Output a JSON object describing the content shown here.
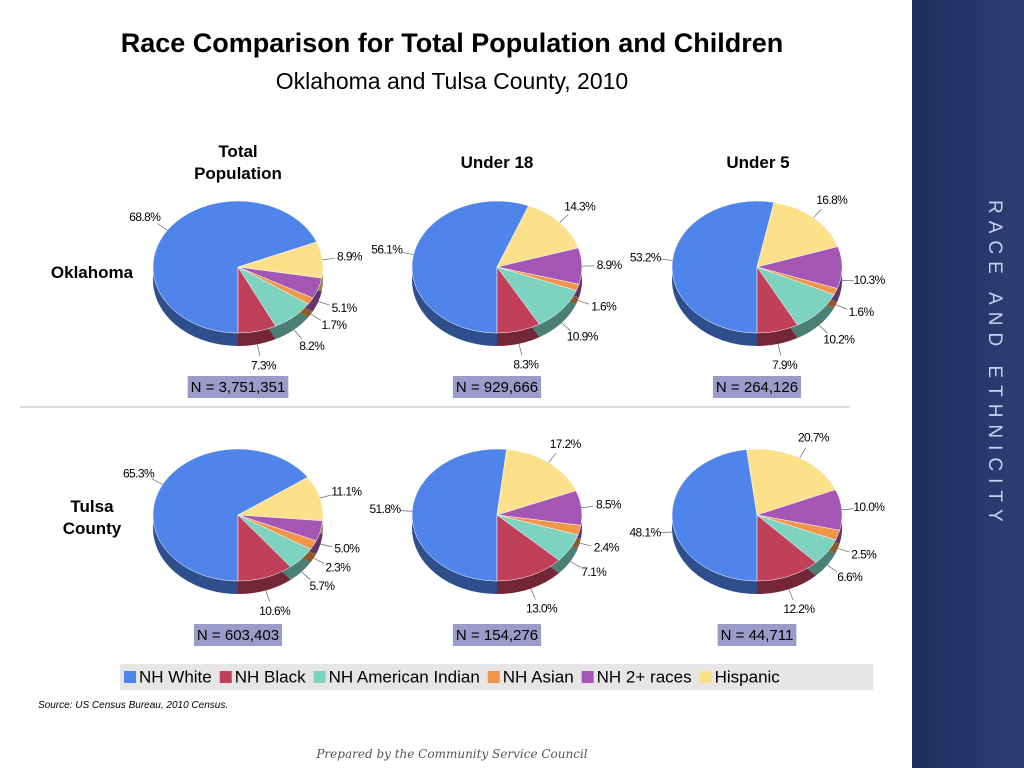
{
  "title": "Race Comparison for Total Population and Children",
  "subtitle": "Oklahoma and Tulsa County, 2010",
  "sidebar": "Race and Ethnicity",
  "columns": [
    "Total Population",
    "Under 18",
    "Under 5"
  ],
  "rows": [
    "Oklahoma",
    "Tulsa County"
  ],
  "legend": {
    "categories": [
      "NH White",
      "NH Black",
      "NH American Indian",
      "NH Asian",
      "NH 2+ races",
      "Hispanic"
    ],
    "colors": [
      "#4f84ea",
      "#c0405a",
      "#7dd3c0",
      "#f0964a",
      "#a456b4",
      "#fde08a"
    ]
  },
  "source": "Source:  US Census Bureau, 2010 Census.",
  "footer": "Prepared by the Community Service Council",
  "chart_data": [
    {
      "type": "pie",
      "values": [
        68.8,
        7.3,
        8.2,
        1.7,
        5.1,
        8.9
      ],
      "value_labels": [
        "68.8%",
        "7.3%",
        "8.2%",
        "1.7%",
        "5.1%",
        "8.9%"
      ],
      "note": "N = 3,751,351"
    },
    {
      "type": "pie",
      "values": [
        56.1,
        8.3,
        10.9,
        1.6,
        8.9,
        14.3
      ],
      "value_labels": [
        "56.1%",
        "8.3%",
        "10.9%",
        "1.6%",
        "8.9%",
        "14.3%"
      ],
      "note": "N = 929,666"
    },
    {
      "type": "pie",
      "values": [
        53.2,
        7.9,
        10.2,
        1.6,
        10.3,
        16.8
      ],
      "value_labels": [
        "53.2%",
        "7.9%",
        "10.2%",
        "1.6%",
        "10.3%",
        "16.8%"
      ],
      "note": "N = 264,126"
    },
    {
      "type": "pie",
      "values": [
        65.3,
        10.6,
        5.7,
        2.3,
        5.0,
        11.1
      ],
      "value_labels": [
        "65.3%",
        "10.6%",
        "5.7%",
        "2.3%",
        "5.0%",
        "11.1%"
      ],
      "note": "N = 603,403"
    },
    {
      "type": "pie",
      "values": [
        51.8,
        13.0,
        7.1,
        2.4,
        8.5,
        17.2
      ],
      "value_labels": [
        "51.8%",
        "13.0%",
        "7.1%",
        "2.4%",
        "8.5%",
        "17.2%"
      ],
      "note": "N = 154,276"
    },
    {
      "type": "pie",
      "values": [
        48.1,
        12.2,
        6.6,
        2.5,
        10.0,
        20.7
      ],
      "value_labels": [
        "48.1%",
        "12.2%",
        "6.6%",
        "2.5%",
        "10.0%",
        "20.7%"
      ],
      "note": "N = 44,711"
    }
  ]
}
